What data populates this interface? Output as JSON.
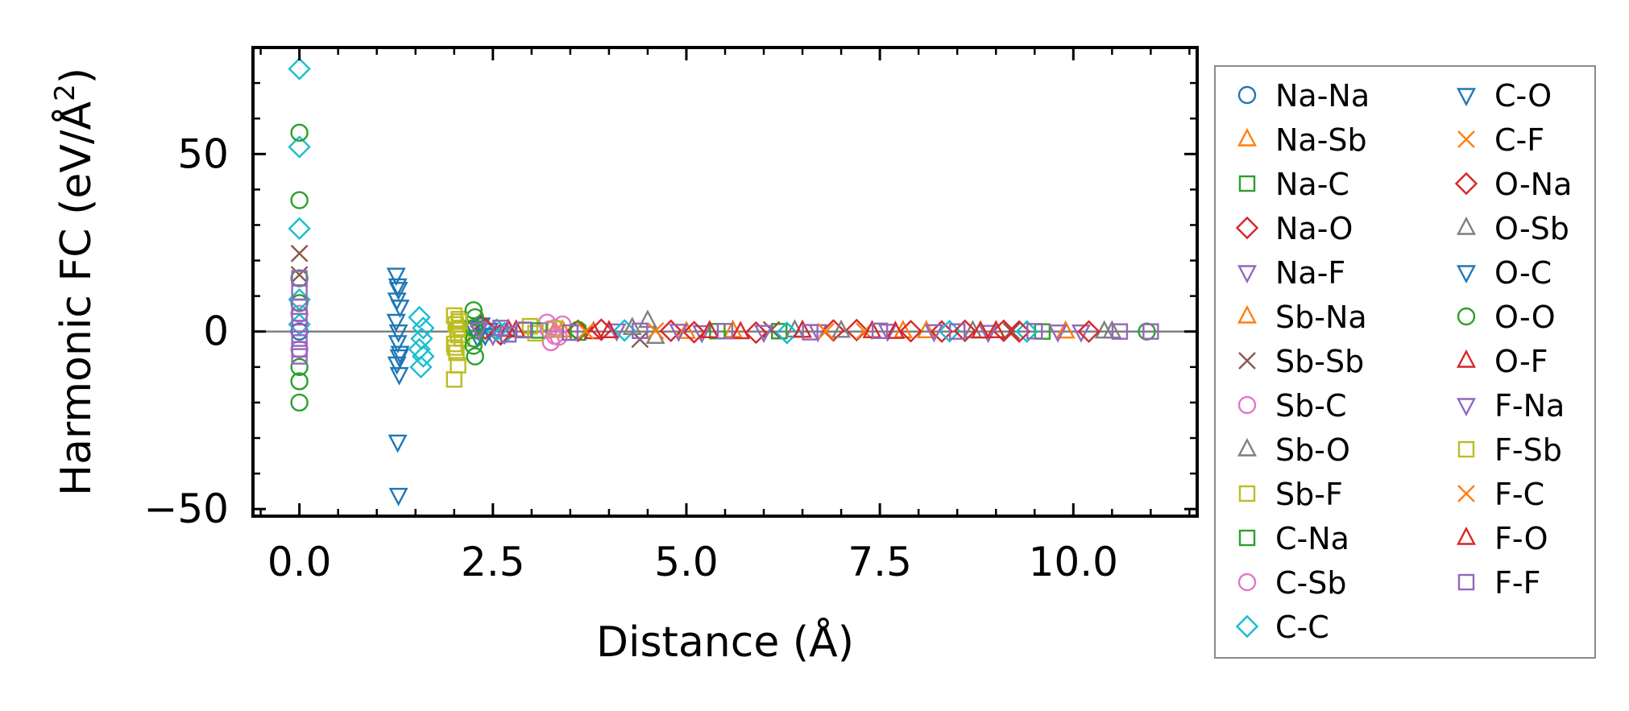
{
  "chart_data": {
    "type": "scatter",
    "xlabel": "Distance (Å)",
    "ylabel_main": "Harmonic FC (eV/Å",
    "ylabel_sup": "2",
    "ylabel_close": ")",
    "xlim": [
      -0.6,
      11.6
    ],
    "ylim": [
      -52,
      80
    ],
    "xticks": [
      0.0,
      2.5,
      5.0,
      7.5,
      10.0
    ],
    "xtick_labels": [
      "0.0",
      "2.5",
      "5.0",
      "7.5",
      "10.0"
    ],
    "yticks": [
      -50,
      0,
      50
    ],
    "ytick_labels": [
      "−50",
      "0",
      "50"
    ],
    "zero_line": 0,
    "legend_position": "right",
    "series": [
      {
        "name": "Na-Na",
        "marker": "circle",
        "color": "#1f77b4",
        "points": [
          [
            0,
            0
          ]
        ]
      },
      {
        "name": "Na-Sb",
        "marker": "triangle-up",
        "color": "#ff7f0e",
        "points": [
          [
            3.4,
            0.3
          ],
          [
            5.6,
            0.2
          ],
          [
            8.1,
            0.1
          ],
          [
            9.9,
            0.0
          ]
        ]
      },
      {
        "name": "Na-C",
        "marker": "square",
        "color": "#2ca02c",
        "points": [
          [
            2.9,
            0.4
          ],
          [
            3.6,
            -0.3
          ],
          [
            6.2,
            0.1
          ]
        ]
      },
      {
        "name": "Na-O",
        "marker": "diamond",
        "color": "#d62728",
        "points": [
          [
            2.35,
            1.5
          ],
          [
            2.6,
            -0.8
          ],
          [
            3.9,
            0.5
          ],
          [
            4.8,
            0.2
          ],
          [
            5.9,
            -0.3
          ],
          [
            7.2,
            0.4
          ],
          [
            8.3,
            0.0
          ],
          [
            9.1,
            0.2
          ]
        ]
      },
      {
        "name": "Na-F",
        "marker": "triangle-down",
        "color": "#9467bd",
        "points": [
          [
            2.3,
            1.2
          ],
          [
            2.5,
            -1.0
          ],
          [
            4.1,
            0.3
          ],
          [
            5.2,
            -0.2
          ],
          [
            6.7,
            0.1
          ],
          [
            7.6,
            0.2
          ],
          [
            8.9,
            -0.1
          ],
          [
            10.1,
            0.0
          ]
        ]
      },
      {
        "name": "Sb-Na",
        "marker": "triangle-up",
        "color": "#ff7f0e",
        "points": [
          [
            3.3,
            0.2
          ],
          [
            5.0,
            -0.1
          ],
          [
            7.8,
            0.1
          ]
        ]
      },
      {
        "name": "Sb-Sb",
        "marker": "x",
        "color": "#8c564b",
        "points": [
          [
            0,
            22
          ],
          [
            0,
            16
          ],
          [
            4.4,
            -2.2
          ],
          [
            6.1,
            0.5
          ],
          [
            9.2,
            0.1
          ]
        ]
      },
      {
        "name": "Sb-C",
        "marker": "circle",
        "color": "#e377c2",
        "points": [
          [
            3.2,
            2.5
          ],
          [
            3.25,
            -3.0
          ],
          [
            3.3,
            1.0
          ],
          [
            3.35,
            -1.5
          ],
          [
            3.4,
            2.0
          ],
          [
            0,
            -5
          ],
          [
            0,
            5
          ]
        ]
      },
      {
        "name": "Sb-O",
        "marker": "triangle-up",
        "color": "#7f7f7f",
        "points": [
          [
            4.5,
            3.0
          ],
          [
            4.6,
            -1.5
          ],
          [
            6.4,
            0.3
          ],
          [
            8.7,
            0.1
          ],
          [
            10.4,
            0.0
          ]
        ]
      },
      {
        "name": "Sb-F",
        "marker": "square",
        "color": "#bcbd22",
        "points": [
          [
            2.0,
            4.5
          ],
          [
            2.02,
            2.0
          ],
          [
            2.05,
            -1.0
          ],
          [
            2.0,
            -3.5
          ],
          [
            2.03,
            -6.0
          ],
          [
            2.05,
            -9.5
          ],
          [
            2.0,
            -13.5
          ],
          [
            2.08,
            1.0
          ],
          [
            2.1,
            -2.0
          ],
          [
            2.06,
            3.5
          ],
          [
            2.98,
            1.5
          ],
          [
            3.05,
            -0.5
          ],
          [
            3.3,
            0.8
          ]
        ]
      },
      {
        "name": "C-Na",
        "marker": "square",
        "color": "#2ca02c",
        "points": [
          [
            3.1,
            0.3
          ],
          [
            5.4,
            0.1
          ],
          [
            9.6,
            0.0
          ]
        ]
      },
      {
        "name": "C-Sb",
        "marker": "circle",
        "color": "#e377c2",
        "points": [
          [
            3.22,
            0.5
          ],
          [
            3.3,
            -1.2
          ]
        ]
      },
      {
        "name": "C-C",
        "marker": "diamond",
        "color": "#17becf",
        "points": [
          [
            0,
            74
          ],
          [
            0,
            52
          ],
          [
            0,
            29
          ],
          [
            0,
            9
          ],
          [
            0,
            2
          ],
          [
            1.55,
            4
          ],
          [
            1.6,
            1
          ],
          [
            1.58,
            -2
          ],
          [
            1.55,
            -5
          ],
          [
            1.6,
            -7
          ],
          [
            1.57,
            -10
          ],
          [
            2.55,
            0.5
          ],
          [
            2.65,
            -0.5
          ],
          [
            4.2,
            0.3
          ],
          [
            6.3,
            -0.4
          ],
          [
            8.4,
            0.1
          ],
          [
            9.4,
            0.0
          ]
        ]
      },
      {
        "name": "C-O",
        "marker": "triangle-down",
        "color": "#1f77b4",
        "points": [
          [
            1.25,
            16
          ],
          [
            1.28,
            12
          ],
          [
            1.26,
            9
          ],
          [
            1.3,
            7
          ],
          [
            1.25,
            3
          ],
          [
            1.28,
            0
          ],
          [
            1.27,
            -3
          ],
          [
            1.3,
            -6
          ],
          [
            1.26,
            -9
          ],
          [
            1.29,
            -12
          ],
          [
            1.27,
            -31
          ],
          [
            1.28,
            -46
          ],
          [
            2.35,
            2.0
          ],
          [
            2.4,
            -1.0
          ],
          [
            2.45,
            0.5
          ]
        ]
      },
      {
        "name": "C-F",
        "marker": "x",
        "color": "#ff7f0e",
        "points": [
          [
            4.6,
            0.2
          ],
          [
            7.3,
            0.1
          ]
        ]
      },
      {
        "name": "O-Na",
        "marker": "diamond",
        "color": "#d62728",
        "points": [
          [
            2.4,
            0.8
          ],
          [
            3.6,
            0.2
          ],
          [
            5.1,
            -0.2
          ],
          [
            6.9,
            0.3
          ],
          [
            7.9,
            0.1
          ],
          [
            8.6,
            0.2
          ],
          [
            9.3,
            0.0
          ],
          [
            10.2,
            0.0
          ]
        ]
      },
      {
        "name": "O-Sb",
        "marker": "triangle-up",
        "color": "#7f7f7f",
        "points": [
          [
            4.3,
            1.0
          ],
          [
            7.0,
            0.2
          ],
          [
            10.5,
            0.0
          ]
        ]
      },
      {
        "name": "O-C",
        "marker": "triangle-down",
        "color": "#1f77b4",
        "points": [
          [
            1.27,
            13
          ],
          [
            1.29,
            -7
          ],
          [
            2.25,
            1.0
          ],
          [
            2.3,
            -1.5
          ]
        ]
      },
      {
        "name": "O-O",
        "marker": "circle",
        "color": "#2ca02c",
        "points": [
          [
            0,
            56
          ],
          [
            0,
            37
          ],
          [
            0,
            15
          ],
          [
            0,
            8
          ],
          [
            0,
            -10
          ],
          [
            0,
            -14
          ],
          [
            0,
            -20
          ],
          [
            2.25,
            6
          ],
          [
            2.27,
            4
          ],
          [
            2.25,
            1
          ],
          [
            2.26,
            -2
          ],
          [
            2.25,
            -4
          ],
          [
            2.27,
            -7
          ],
          [
            3.6,
            0.5
          ],
          [
            10.95,
            0.0
          ]
        ]
      },
      {
        "name": "O-F",
        "marker": "triangle-up",
        "color": "#d62728",
        "points": [
          [
            2.7,
            0.5
          ],
          [
            3.8,
            -0.2
          ],
          [
            5.3,
            0.1
          ],
          [
            6.5,
            0.2
          ],
          [
            7.7,
            -0.1
          ],
          [
            9.0,
            0.1
          ]
        ]
      },
      {
        "name": "F-Na",
        "marker": "triangle-down",
        "color": "#9467bd",
        "points": [
          [
            2.32,
            0.6
          ],
          [
            4.9,
            0.2
          ],
          [
            6.0,
            -0.1
          ],
          [
            8.2,
            0.1
          ],
          [
            9.8,
            0.0
          ]
        ]
      },
      {
        "name": "F-Sb",
        "marker": "square",
        "color": "#bcbd22",
        "points": [
          [
            2.04,
            0.5
          ],
          [
            2.01,
            -4.5
          ],
          [
            2.07,
            2.8
          ]
        ]
      },
      {
        "name": "F-C",
        "marker": "x",
        "color": "#ff7f0e",
        "points": [
          [
            3.7,
            0.1
          ],
          [
            6.8,
            0.0
          ]
        ]
      },
      {
        "name": "F-O",
        "marker": "triangle-up",
        "color": "#d62728",
        "points": [
          [
            2.8,
            0.3
          ],
          [
            4.0,
            0.1
          ],
          [
            5.7,
            -0.2
          ],
          [
            7.4,
            0.1
          ],
          [
            8.8,
            0.0
          ]
        ]
      },
      {
        "name": "F-F",
        "marker": "square",
        "color": "#9467bd",
        "points": [
          [
            0,
            15
          ],
          [
            0,
            11
          ],
          [
            0,
            7
          ],
          [
            0,
            4
          ],
          [
            0,
            1
          ],
          [
            0,
            -2
          ],
          [
            0,
            -5
          ],
          [
            0,
            -7
          ],
          [
            2.6,
            1.0
          ],
          [
            2.7,
            -0.8
          ],
          [
            2.9,
            0.5
          ],
          [
            3.5,
            -0.3
          ],
          [
            4.4,
            0.2
          ],
          [
            5.5,
            0.1
          ],
          [
            6.6,
            -0.2
          ],
          [
            7.5,
            0.2
          ],
          [
            8.5,
            0.0
          ],
          [
            9.5,
            0.1
          ],
          [
            10.6,
            0.0
          ],
          [
            11.0,
            0.0
          ]
        ]
      }
    ]
  }
}
